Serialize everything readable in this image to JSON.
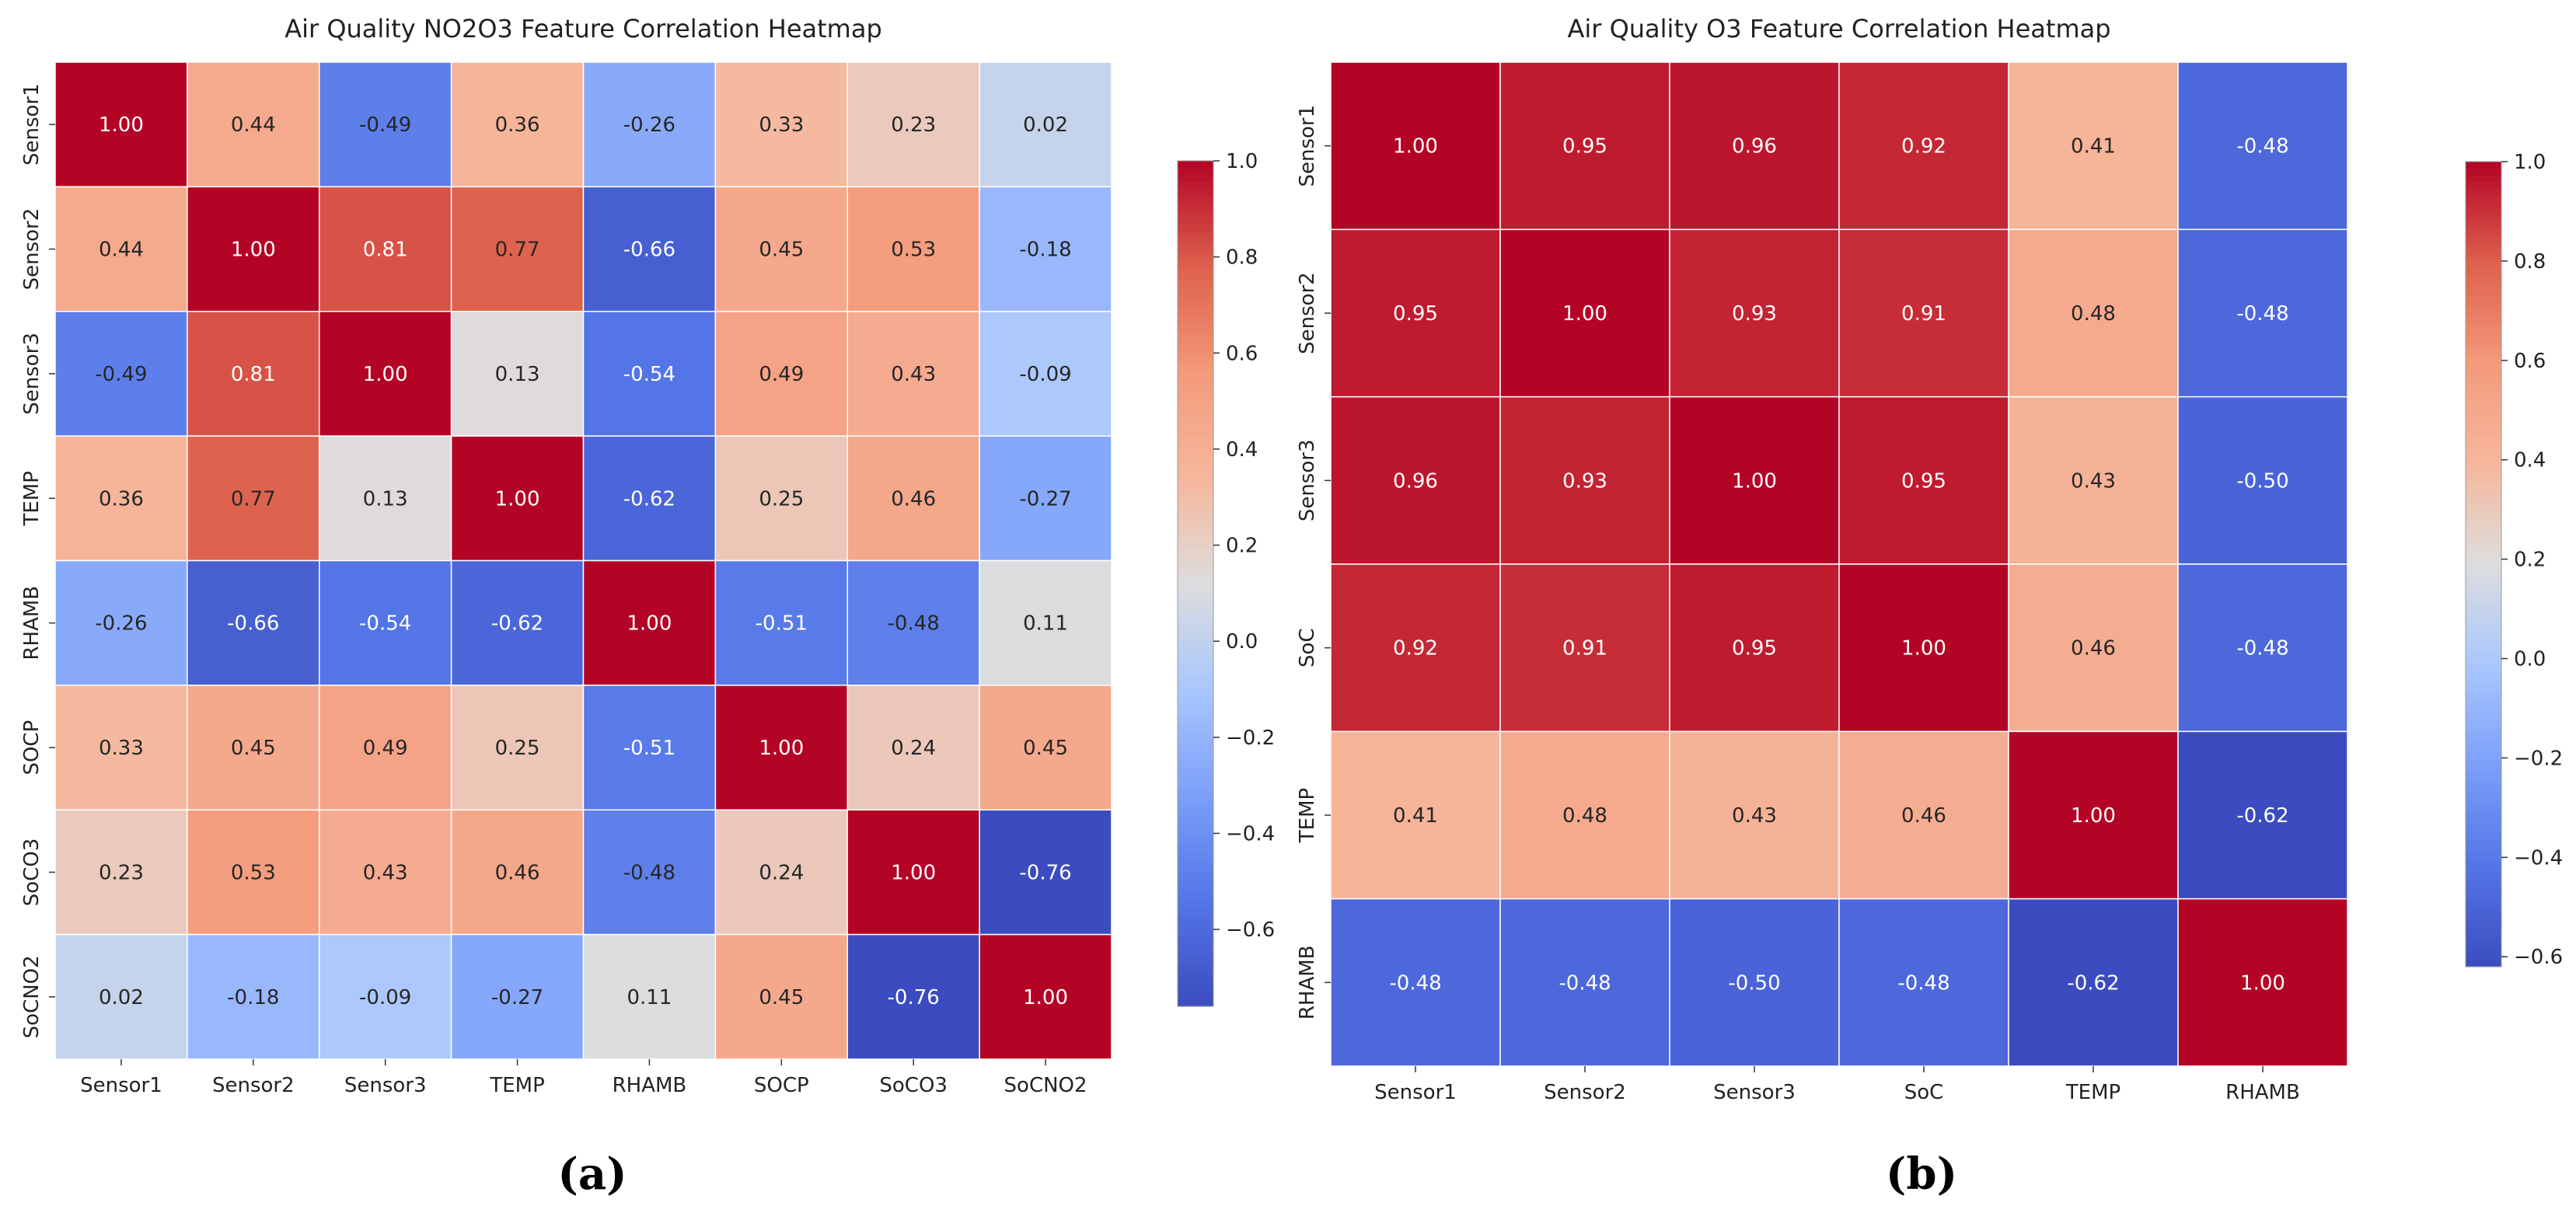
{
  "chart_data": [
    {
      "type": "heatmap",
      "panel": "(a)",
      "title": "Air Quality NO2O3 Feature Correlation Heatmap",
      "xlabel": "",
      "ylabel": "",
      "x_categories": [
        "Sensor1",
        "Sensor2",
        "Sensor3",
        "TEMP",
        "RHAMB",
        "SOCP",
        "SoCO3",
        "SoCNO2"
      ],
      "y_categories": [
        "Sensor1",
        "Sensor2",
        "Sensor3",
        "TEMP",
        "RHAMB",
        "SOCP",
        "SoCO3",
        "SoCNO2"
      ],
      "values": [
        [
          1.0,
          0.44,
          -0.49,
          0.36,
          -0.26,
          0.33,
          0.23,
          0.02
        ],
        [
          0.44,
          1.0,
          0.81,
          0.77,
          -0.66,
          0.45,
          0.53,
          -0.18
        ],
        [
          -0.49,
          0.81,
          1.0,
          0.13,
          -0.54,
          0.49,
          0.43,
          -0.09
        ],
        [
          0.36,
          0.77,
          0.13,
          1.0,
          -0.62,
          0.25,
          0.46,
          -0.27
        ],
        [
          -0.26,
          -0.66,
          -0.54,
          -0.62,
          1.0,
          -0.51,
          -0.48,
          0.11
        ],
        [
          0.33,
          0.45,
          0.49,
          0.25,
          -0.51,
          1.0,
          0.24,
          0.45
        ],
        [
          0.23,
          0.53,
          0.43,
          0.46,
          -0.48,
          0.24,
          1.0,
          -0.76
        ],
        [
          0.02,
          -0.18,
          -0.09,
          -0.27,
          0.11,
          0.45,
          -0.76,
          1.0
        ]
      ],
      "colormap": "coolwarm",
      "vmin": -0.76,
      "vmax": 1.0,
      "colorbar_ticks": [
        1.0,
        0.8,
        0.6,
        0.4,
        0.2,
        0.0,
        -0.2,
        -0.4,
        -0.6
      ],
      "colorbar_tick_labels": [
        "1.0",
        "0.8",
        "0.6",
        "0.4",
        "0.2",
        "0.0",
        "−0.2",
        "−0.4",
        "−0.6"
      ]
    },
    {
      "type": "heatmap",
      "panel": "(b)",
      "title": "Air Quality O3 Feature Correlation Heatmap",
      "xlabel": "",
      "ylabel": "",
      "x_categories": [
        "Sensor1",
        "Sensor2",
        "Sensor3",
        "SoC",
        "TEMP",
        "RHAMB"
      ],
      "y_categories": [
        "Sensor1",
        "Sensor2",
        "Sensor3",
        "SoC",
        "TEMP",
        "RHAMB"
      ],
      "values": [
        [
          1.0,
          0.95,
          0.96,
          0.92,
          0.41,
          -0.48
        ],
        [
          0.95,
          1.0,
          0.93,
          0.91,
          0.48,
          -0.48
        ],
        [
          0.96,
          0.93,
          1.0,
          0.95,
          0.43,
          -0.5
        ],
        [
          0.92,
          0.91,
          0.95,
          1.0,
          0.46,
          -0.48
        ],
        [
          0.41,
          0.48,
          0.43,
          0.46,
          1.0,
          -0.62
        ],
        [
          -0.48,
          -0.48,
          -0.5,
          -0.48,
          -0.62,
          1.0
        ]
      ],
      "colormap": "coolwarm",
      "vmin": -0.62,
      "vmax": 1.0,
      "colorbar_ticks": [
        1.0,
        0.8,
        0.6,
        0.4,
        0.2,
        0.0,
        -0.2,
        -0.4,
        -0.6
      ],
      "colorbar_tick_labels": [
        "1.0",
        "0.8",
        "0.6",
        "0.4",
        "0.2",
        "0.0",
        "−0.2",
        "−0.4",
        "−0.6"
      ]
    }
  ]
}
